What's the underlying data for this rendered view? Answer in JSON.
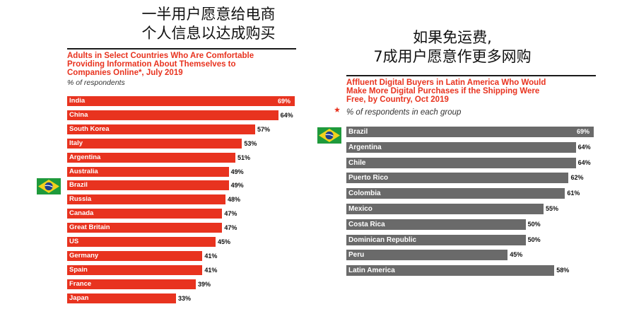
{
  "captions": {
    "left": [
      "一半用户愿意给电商",
      "个人信息以达成购买"
    ],
    "right": [
      "如果免运费,",
      "7成用户愿意作更多网购"
    ]
  },
  "colors": {
    "red": "#e8331f",
    "grey": "#6a6a6a",
    "brazil_green": "#1f9a3c",
    "brazil_yellow": "#f2d21b",
    "brazil_blue": "#1d3f8f"
  },
  "icons": {
    "left_flag": "brazil-flag-icon",
    "right_flag": "brazil-flag-icon",
    "star": "red-star-icon"
  },
  "chart_data": [
    {
      "type": "bar",
      "orientation": "horizontal",
      "title_lines": [
        "Adults in Select Countries Who Are Comfortable",
        "Providing Information About Themselves to",
        "Companies Online*, July 2019"
      ],
      "subtitle": "% of respondents",
      "categories": [
        "India",
        "China",
        "South Korea",
        "Italy",
        "Argentina",
        "Australia",
        "Brazil",
        "Russia",
        "Canada",
        "Great Britain",
        "US",
        "Germany",
        "Spain",
        "France",
        "Japan"
      ],
      "values": [
        69,
        64,
        57,
        53,
        51,
        49,
        49,
        48,
        47,
        47,
        45,
        41,
        41,
        39,
        33
      ],
      "value_labels": [
        "69%",
        "64%",
        "57%",
        "53%",
        "51%",
        "49%",
        "49%",
        "48%",
        "47%",
        "47%",
        "45%",
        "41%",
        "41%",
        "39%",
        "33%"
      ],
      "xlim": [
        0,
        69
      ],
      "highlight": "Brazil"
    },
    {
      "type": "bar",
      "orientation": "horizontal",
      "title_lines": [
        "Affluent Digital Buyers in Latin America Who Would",
        "Make More Digital Purchases if the Shipping Were",
        "Free, by Country, Oct 2019"
      ],
      "subtitle": "% of respondents in each group",
      "categories": [
        "Brazil",
        "Argentina",
        "Chile",
        "Puerto Rico",
        "Colombia",
        "Mexico",
        "Costa Rica",
        "Dominican Republic",
        "Peru",
        "Latin America"
      ],
      "values": [
        69,
        64,
        64,
        62,
        61,
        55,
        50,
        50,
        45,
        58
      ],
      "value_labels": [
        "69%",
        "64%",
        "64%",
        "62%",
        "61%",
        "55%",
        "50%",
        "50%",
        "45%",
        "58%"
      ],
      "xlim": [
        0,
        69
      ],
      "highlight": "Brazil"
    }
  ]
}
